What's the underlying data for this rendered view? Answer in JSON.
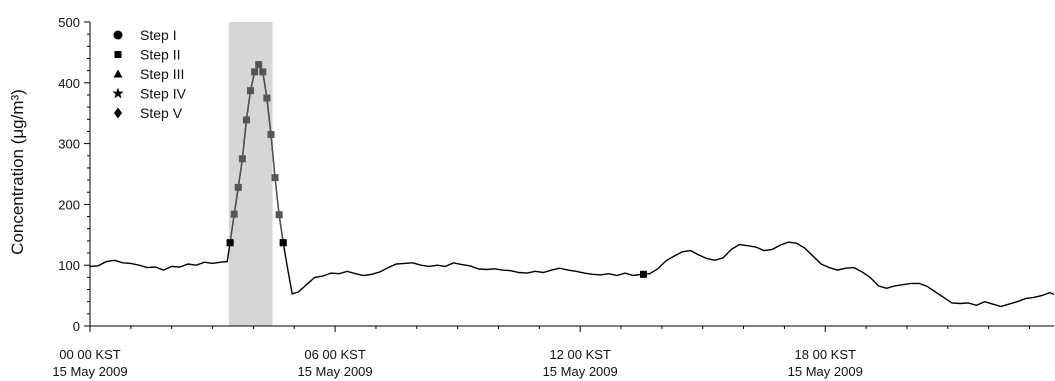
{
  "chart_data": {
    "type": "line",
    "ylabel": "Concentration (μg/m³)",
    "ylim": [
      0,
      500
    ],
    "xlim_hours": [
      0,
      23.6
    ],
    "y_ticks": [
      "0",
      "100",
      "200",
      "300",
      "400",
      "500"
    ],
    "x_ticks": [
      {
        "hour": 0,
        "line1": "00 00 KST",
        "line2": "15 May 2009"
      },
      {
        "hour": 6,
        "line1": "06 00 KST",
        "line2": "15 May 2009"
      },
      {
        "hour": 12,
        "line1": "12 00 KST",
        "line2": "15 May 2009"
      },
      {
        "hour": 18,
        "line1": "18 00 KST",
        "line2": "15 May 2009"
      }
    ],
    "legend": {
      "placement": "top-left",
      "entries": [
        {
          "label": "Step I",
          "marker": "circle"
        },
        {
          "label": "Step II",
          "marker": "square"
        },
        {
          "label": "Step III",
          "marker": "triangle"
        },
        {
          "label": "Step IV",
          "marker": "star"
        },
        {
          "label": "Step V",
          "marker": "diamond"
        }
      ]
    },
    "highlight_band_hours": [
      3.4,
      4.47
    ],
    "series": [
      {
        "color": "#000000",
        "points": [
          [
            0,
            98
          ],
          [
            0.2,
            99
          ],
          [
            0.4,
            106
          ],
          [
            0.6,
            108
          ],
          [
            0.8,
            104
          ],
          [
            1.0,
            103
          ],
          [
            1.2,
            100
          ],
          [
            1.4,
            96
          ],
          [
            1.6,
            97
          ],
          [
            1.8,
            92
          ],
          [
            2.0,
            98
          ],
          [
            2.2,
            97
          ],
          [
            2.4,
            102
          ],
          [
            2.6,
            100
          ],
          [
            2.8,
            105
          ],
          [
            3.0,
            103
          ],
          [
            3.2,
            105
          ],
          [
            3.36,
            106
          ],
          [
            3.43,
            137
          ],
          [
            3.53,
            184
          ],
          [
            3.63,
            228
          ],
          [
            3.73,
            275
          ],
          [
            3.83,
            339
          ],
          [
            3.93,
            387
          ],
          [
            4.03,
            418
          ],
          [
            4.13,
            430
          ],
          [
            4.23,
            418
          ],
          [
            4.33,
            375
          ],
          [
            4.43,
            315
          ],
          [
            4.53,
            244
          ],
          [
            4.63,
            183
          ],
          [
            4.73,
            137
          ],
          [
            4.85,
            90
          ],
          [
            4.95,
            53
          ],
          [
            5.1,
            56
          ],
          [
            5.3,
            68
          ],
          [
            5.5,
            80
          ],
          [
            5.7,
            82
          ],
          [
            5.9,
            87
          ],
          [
            6.1,
            86
          ],
          [
            6.3,
            90
          ],
          [
            6.5,
            86
          ],
          [
            6.7,
            83
          ],
          [
            6.9,
            85
          ],
          [
            7.1,
            89
          ],
          [
            7.3,
            96
          ],
          [
            7.5,
            102
          ],
          [
            7.7,
            103
          ],
          [
            7.9,
            104
          ],
          [
            8.1,
            100
          ],
          [
            8.3,
            98
          ],
          [
            8.5,
            100
          ],
          [
            8.7,
            98
          ],
          [
            8.9,
            104
          ],
          [
            9.1,
            101
          ],
          [
            9.3,
            99
          ],
          [
            9.5,
            94
          ],
          [
            9.7,
            93
          ],
          [
            9.9,
            94
          ],
          [
            10.1,
            92
          ],
          [
            10.3,
            91
          ],
          [
            10.5,
            88
          ],
          [
            10.7,
            87
          ],
          [
            10.9,
            90
          ],
          [
            11.1,
            88
          ],
          [
            11.3,
            92
          ],
          [
            11.5,
            95
          ],
          [
            11.7,
            92
          ],
          [
            11.9,
            90
          ],
          [
            12.1,
            87
          ],
          [
            12.3,
            85
          ],
          [
            12.5,
            84
          ],
          [
            12.7,
            86
          ],
          [
            12.9,
            83
          ],
          [
            13.1,
            87
          ],
          [
            13.3,
            83
          ],
          [
            13.5,
            85
          ],
          [
            13.7,
            86
          ],
          [
            13.9,
            94
          ],
          [
            14.1,
            107
          ],
          [
            14.3,
            115
          ],
          [
            14.5,
            122
          ],
          [
            14.7,
            124
          ],
          [
            14.9,
            117
          ],
          [
            15.1,
            111
          ],
          [
            15.3,
            108
          ],
          [
            15.5,
            112
          ],
          [
            15.7,
            126
          ],
          [
            15.9,
            134
          ],
          [
            16.1,
            132
          ],
          [
            16.3,
            130
          ],
          [
            16.5,
            124
          ],
          [
            16.7,
            126
          ],
          [
            16.9,
            133
          ],
          [
            17.1,
            138
          ],
          [
            17.3,
            136
          ],
          [
            17.5,
            128
          ],
          [
            17.7,
            115
          ],
          [
            17.9,
            102
          ],
          [
            18.1,
            96
          ],
          [
            18.3,
            92
          ],
          [
            18.5,
            95
          ],
          [
            18.7,
            96
          ],
          [
            18.9,
            89
          ],
          [
            19.1,
            80
          ],
          [
            19.3,
            66
          ],
          [
            19.5,
            62
          ],
          [
            19.7,
            66
          ],
          [
            19.9,
            68
          ],
          [
            20.1,
            70
          ],
          [
            20.3,
            70
          ],
          [
            20.5,
            65
          ],
          [
            20.7,
            56
          ],
          [
            20.9,
            47
          ],
          [
            21.1,
            38
          ],
          [
            21.3,
            37
          ],
          [
            21.5,
            38
          ],
          [
            21.7,
            34
          ],
          [
            21.9,
            40
          ],
          [
            22.1,
            36
          ],
          [
            22.3,
            32
          ],
          [
            22.5,
            36
          ],
          [
            22.7,
            40
          ],
          [
            22.9,
            45
          ],
          [
            23.1,
            47
          ],
          [
            23.3,
            50
          ],
          [
            23.5,
            55
          ],
          [
            23.6,
            52
          ]
        ]
      },
      {
        "color": "#555555",
        "marker": "square",
        "points": [
          [
            3.43,
            137
          ],
          [
            3.53,
            184
          ],
          [
            3.63,
            228
          ],
          [
            3.73,
            275
          ],
          [
            3.83,
            339
          ],
          [
            3.93,
            387
          ],
          [
            4.03,
            418
          ],
          [
            4.13,
            430
          ],
          [
            4.23,
            418
          ],
          [
            4.33,
            375
          ],
          [
            4.43,
            315
          ],
          [
            4.53,
            244
          ],
          [
            4.63,
            183
          ],
          [
            4.73,
            137
          ]
        ]
      }
    ],
    "black_markers": [
      {
        "marker": "square",
        "x": 3.43,
        "y": 137
      },
      {
        "marker": "square",
        "x": 4.73,
        "y": 137
      },
      {
        "marker": "square",
        "x": 13.55,
        "y": 85
      }
    ]
  }
}
